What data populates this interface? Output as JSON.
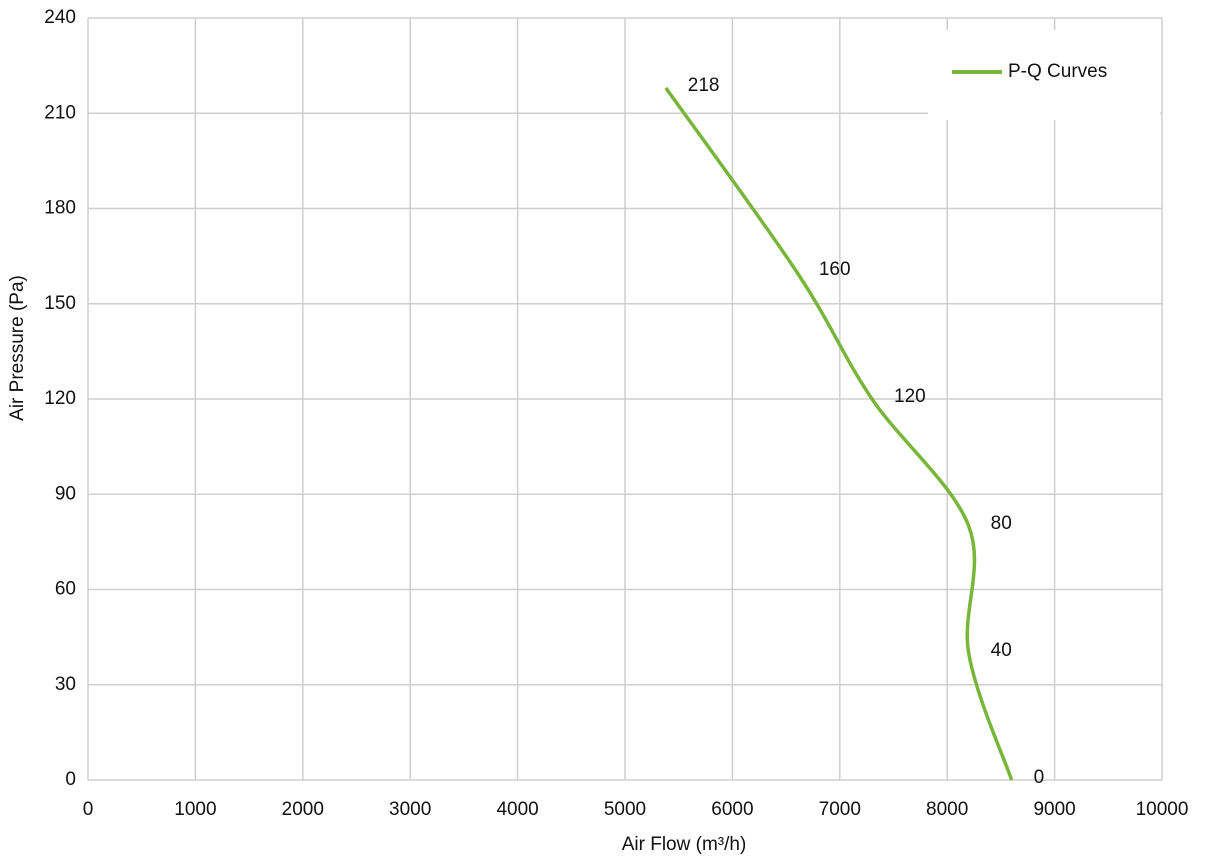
{
  "chart_data": {
    "type": "line",
    "x_label": "Air Flow  (m³/h)",
    "y_label": "Air Pressure  (Pa)",
    "series": [
      {
        "name": "P-Q Curves",
        "color": "#78b63a",
        "x": [
          5380,
          6600,
          7300,
          8200,
          8200,
          8600
        ],
        "values": [
          218,
          160,
          120,
          80,
          40,
          0
        ]
      }
    ],
    "xlim": [
      0,
      10000
    ],
    "xticks": [
      0,
      1000,
      2000,
      3000,
      4000,
      5000,
      6000,
      7000,
      8000,
      9000,
      10000
    ],
    "ylim": [
      0,
      240
    ],
    "yticks": [
      0,
      30,
      60,
      90,
      120,
      150,
      180,
      210,
      240
    ],
    "grid": true,
    "legend": "upper right"
  }
}
